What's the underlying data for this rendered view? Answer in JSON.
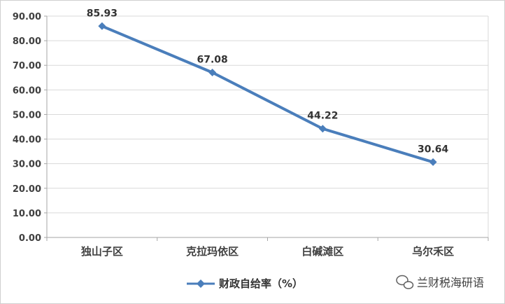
{
  "chart_data": {
    "type": "line",
    "categories": [
      "独山子区",
      "克拉玛依区",
      "白碱滩区",
      "乌尔禾区"
    ],
    "series": [
      {
        "name": "财政自给率（%）",
        "values": [
          85.93,
          67.08,
          44.22,
          30.64
        ],
        "color": "#4a7ebb"
      }
    ],
    "data_labels": [
      "85.93",
      "67.08",
      "44.22",
      "30.64"
    ],
    "ylim": [
      0,
      90
    ],
    "yticks": [
      0,
      10,
      20,
      30,
      40,
      50,
      60,
      70,
      80,
      90
    ],
    "ytick_labels": [
      "0.00",
      "10.00",
      "20.00",
      "30.00",
      "40.00",
      "50.00",
      "60.00",
      "70.00",
      "80.00",
      "90.00"
    ],
    "grid": true,
    "legend_position": "bottom",
    "marker": "diamond"
  },
  "watermark": {
    "text": "兰财税海研语"
  },
  "colors": {
    "grid": "#d9d9d9",
    "axis": "#a6a6a6",
    "border": "#d0d0d0"
  }
}
